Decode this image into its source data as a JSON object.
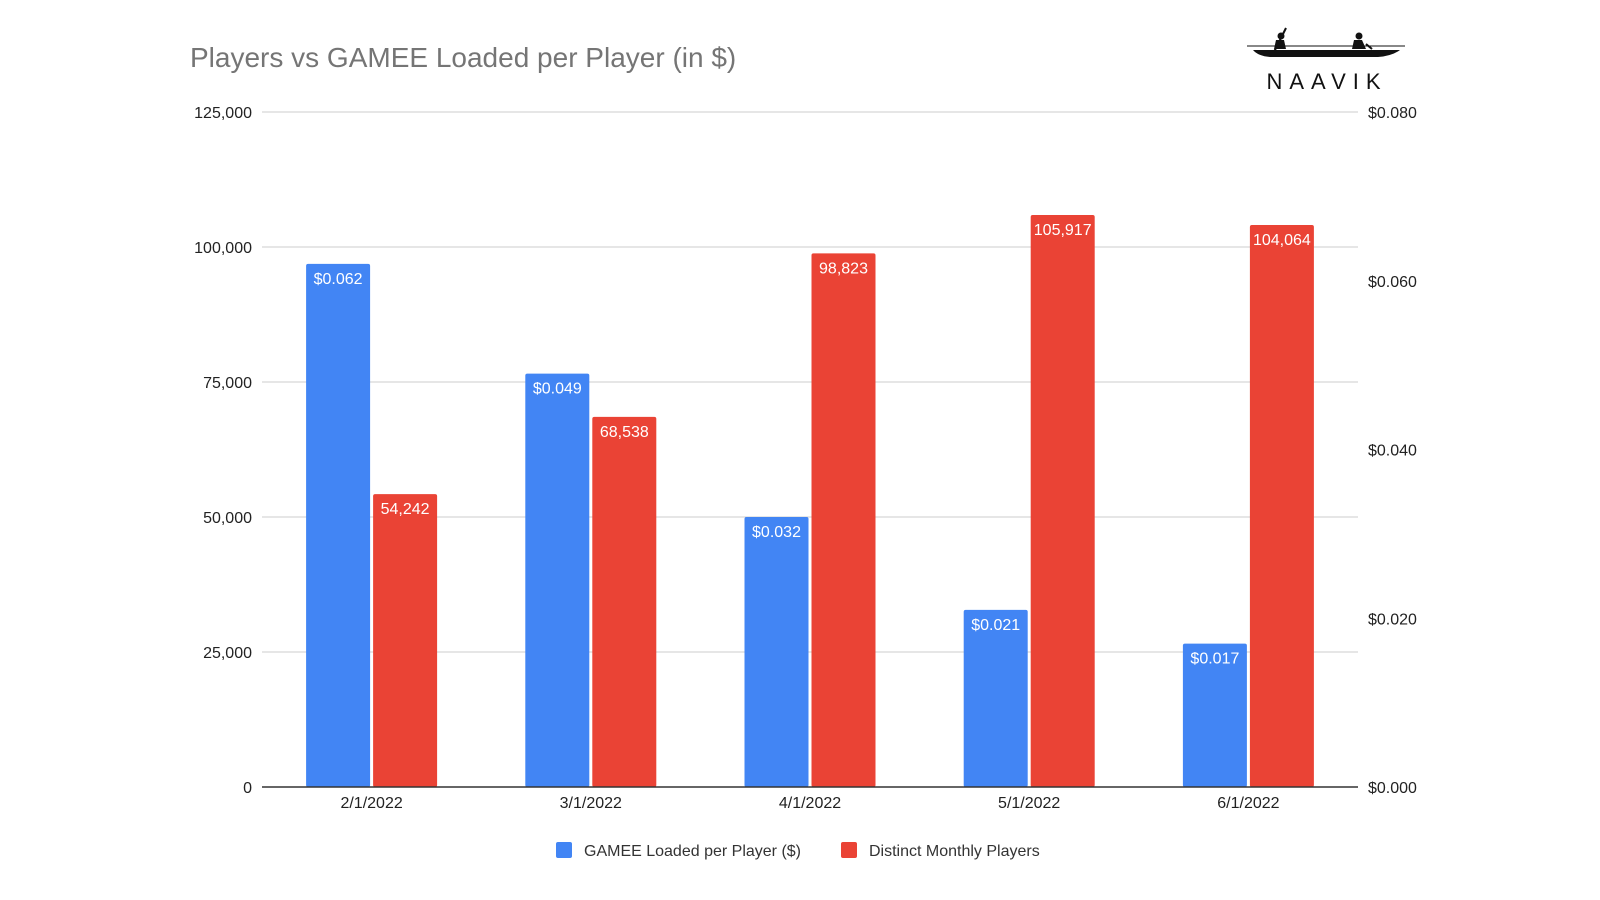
{
  "chart_data": {
    "type": "bar",
    "title": "Players vs GAMEE Loaded per Player (in $)",
    "categories": [
      "2/1/2022",
      "3/1/2022",
      "4/1/2022",
      "5/1/2022",
      "6/1/2022"
    ],
    "series": [
      {
        "name": "GAMEE Loaded per Player ($)",
        "axis": "right",
        "color": "#4285f4",
        "values": [
          0.062,
          0.049,
          0.032,
          0.021,
          0.017
        ],
        "labels": [
          "$0.062",
          "$0.049",
          "$0.032",
          "$0.021",
          "$0.017"
        ]
      },
      {
        "name": "Distinct Monthly Players",
        "axis": "left",
        "color": "#ea4335",
        "values": [
          54242,
          68538,
          98823,
          105917,
          104064
        ],
        "labels": [
          "54,242",
          "68,538",
          "98,823",
          "105,917",
          "104,064"
        ]
      }
    ],
    "left_axis": {
      "ylim": [
        0,
        125000
      ],
      "ticks": [
        0,
        25000,
        50000,
        75000,
        100000,
        125000
      ],
      "tick_labels": [
        "0",
        "25,000",
        "50,000",
        "75,000",
        "100,000",
        "125,000"
      ]
    },
    "right_axis": {
      "ylim": [
        0,
        0.08
      ],
      "ticks": [
        0,
        0.02,
        0.04,
        0.06,
        0.08
      ],
      "tick_labels": [
        "$0.000",
        "$0.020",
        "$0.040",
        "$0.060",
        "$0.080"
      ]
    },
    "grid": true,
    "legend_position": "bottom-center",
    "xlabel": "",
    "ylabel": ""
  },
  "branding": {
    "logo_text": "NAAVIK",
    "logo_icon": "boat-rowers-icon"
  }
}
